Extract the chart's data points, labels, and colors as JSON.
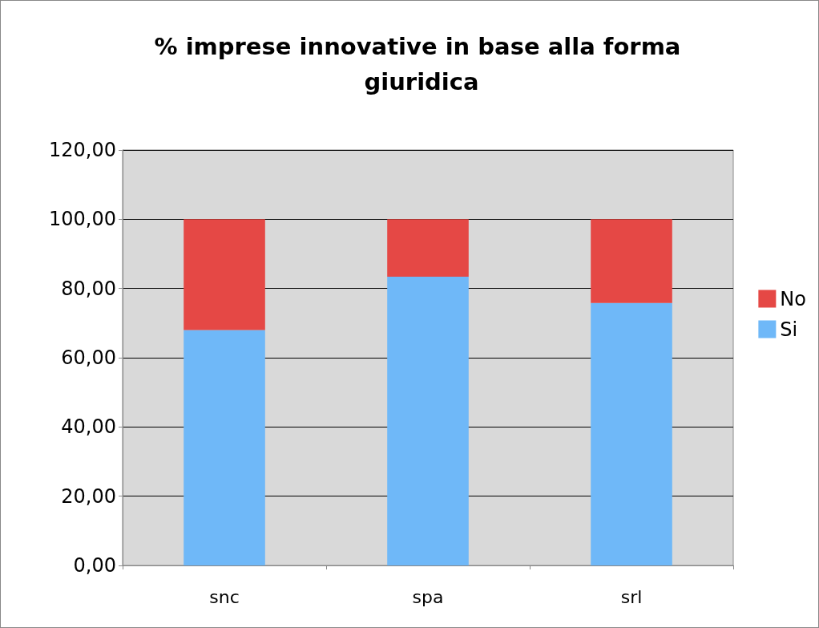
{
  "chart_data": {
    "type": "bar",
    "title": "% imprese innovative in base alla forma giuridica",
    "categories": [
      "snc",
      "spa",
      "srl"
    ],
    "stacked": true,
    "series": [
      {
        "name": "Si",
        "color": "#6fb8f8",
        "values": [
          68,
          83.4,
          75.8
        ]
      },
      {
        "name": "No",
        "color": "#e54845",
        "values": [
          32,
          16.6,
          24.2
        ]
      }
    ],
    "ylim": [
      0,
      120
    ],
    "yticks": [
      {
        "value": 0,
        "label": "0,00"
      },
      {
        "value": 20,
        "label": "20,00"
      },
      {
        "value": 40,
        "label": "40,00"
      },
      {
        "value": 60,
        "label": "60,00"
      },
      {
        "value": 80,
        "label": "80,00"
      },
      {
        "value": 100,
        "label": "100,00"
      },
      {
        "value": 120,
        "label": "120,00"
      }
    ],
    "grid": "y",
    "legend": "right"
  }
}
